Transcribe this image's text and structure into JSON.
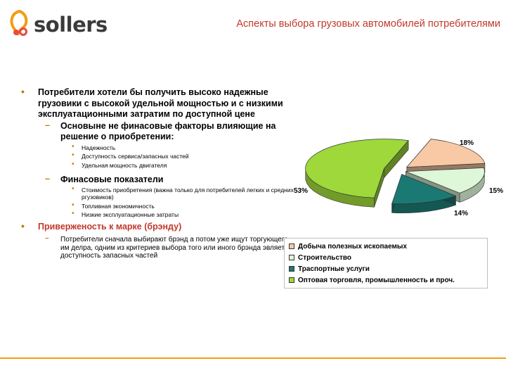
{
  "header": {
    "logo_text": "sollers",
    "title": "Аспекты выбора грузовых автомобилей потребителями"
  },
  "content": {
    "bullet1": "Потребители хотели бы получить высоко надежные грузовики с высокой удельной мощностью и с низкими эксплуатационными затратим по доступной цене",
    "sub1": "Основыне не финасовые факторы влияющие на решение о приобретении:",
    "sub1_items": [
      "Надежность",
      "Доступность сервиса/запасных частей",
      "Удельная мощность двигателя"
    ],
    "sub2": "Финасовые показатели",
    "sub2_items": [
      "Стоимость приобретения (важна только для потребителей легких и средних ргузовиков)",
      "Топливная экономичность",
      "Низкие эксплуатационные затраты"
    ],
    "bullet2": "Приверженость к марке (брэнду)",
    "sub3": "Потребители сначала выбирают брэнд а потом уже ищут торгующего им делра, одним из критериев выбора того или иного брэнда эвляется доступность запасных частей"
  },
  "chart_data": {
    "type": "pie",
    "title": "",
    "categories": [
      "Добыча полезных ископаемых",
      "Строительство",
      "Траспортные услуги",
      "Оптовая торговля, промышленность и проч."
    ],
    "values": [
      18,
      15,
      14,
      53
    ],
    "value_labels": [
      "18%",
      "15%",
      "14%",
      "53%"
    ],
    "colors": [
      "#f9c9a6",
      "#ddf7d8",
      "#1a7a73",
      "#9ed83b"
    ],
    "style": "3d",
    "legend_position": "bottom-right"
  }
}
